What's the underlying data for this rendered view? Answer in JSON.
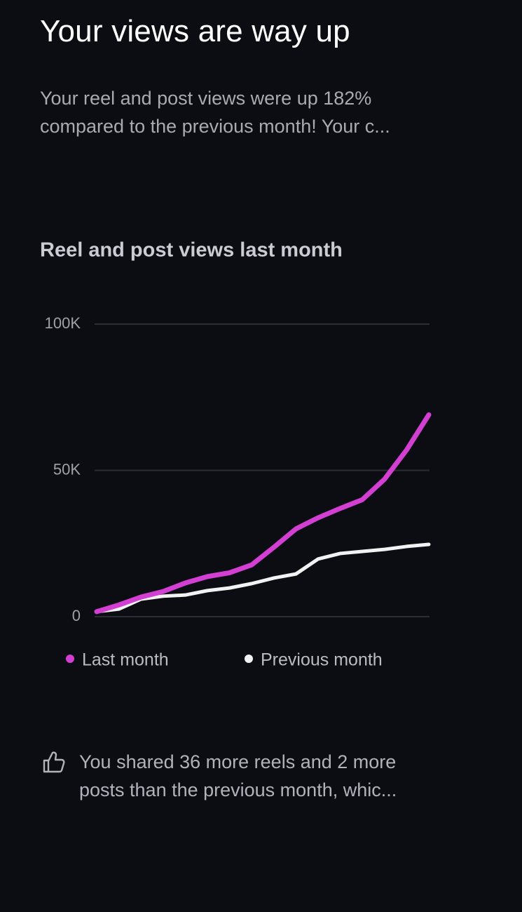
{
  "header": {
    "title": "Your views are way up",
    "description_lines": [
      "Your reel and post views were up 182%",
      "compared to the previous month! Your c..."
    ]
  },
  "chart_data": {
    "type": "line",
    "title": "Reel and post views last month",
    "categories": [
      null,
      null,
      null,
      null,
      null,
      null,
      null,
      null,
      null,
      null,
      null,
      null,
      null,
      null,
      null,
      null
    ],
    "series": [
      {
        "name": "Last month",
        "color": "#d23fd2",
        "values": [
          1700,
          4000,
          6700,
          8600,
          11500,
          13700,
          15000,
          17700,
          23700,
          30000,
          33800,
          37000,
          40000,
          47000,
          57000,
          69000
        ]
      },
      {
        "name": "Previous month",
        "color": "#f2f2f2",
        "values": [
          1700,
          2600,
          6000,
          7000,
          7400,
          8900,
          9800,
          11300,
          13200,
          14600,
          19700,
          21600,
          22300,
          23000,
          24000,
          24700
        ]
      }
    ],
    "ylim": [
      0,
      100000
    ],
    "yticks": [
      0,
      {
        "value": 50000,
        "label": "50K"
      },
      {
        "value": 100000,
        "label": "100K"
      }
    ],
    "grid": true
  },
  "footer": {
    "lines": [
      "You shared 36 more reels and 2 more",
      "posts than the previous month, whic..."
    ]
  }
}
